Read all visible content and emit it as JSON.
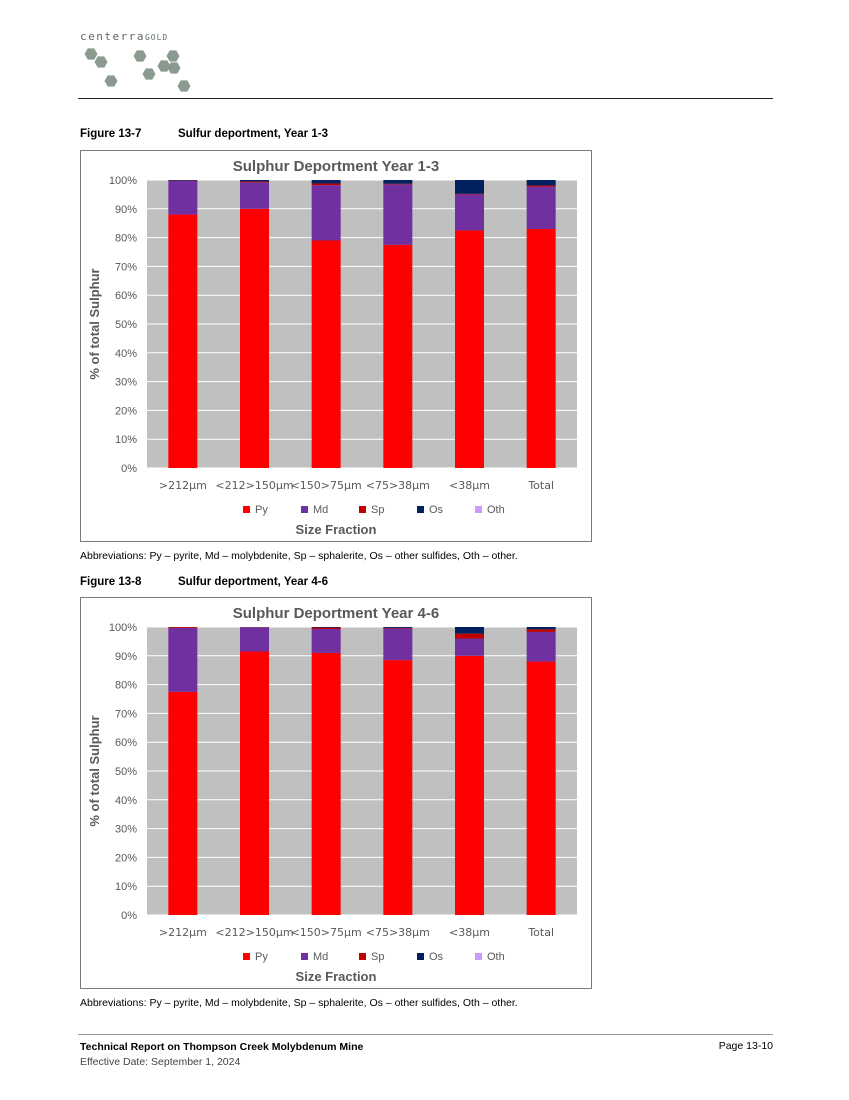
{
  "header": {
    "logo_text_main": "centerra",
    "logo_text_sub": "GOLD",
    "logo_color": "#8a9a8e"
  },
  "figures": [
    {
      "number": "Figure 13-7",
      "caption": "Sulfur deportment, Year 1-3",
      "abbreviations": "Abbreviations: Py – pyrite, Md – molybdenite, Sp – sphalerite, Os – other sulfides, Oth – other."
    },
    {
      "number": "Figure 13-8",
      "caption": "Sulfur deportment, Year 4-6",
      "abbreviations": "Abbreviations: Py – pyrite, Md – molybdenite, Sp – sphalerite, Os – other sulfides, Oth – other."
    }
  ],
  "chart_data": [
    {
      "type": "bar",
      "stacked": true,
      "title": "Sulphur Deportment Year 1-3",
      "xlabel": "Size Fraction",
      "ylabel": "% of total Sulphur",
      "ylim": [
        0,
        100
      ],
      "yticks": [
        "0%",
        "10%",
        "20%",
        "30%",
        "40%",
        "50%",
        "60%",
        "70%",
        "80%",
        "90%",
        "100%"
      ],
      "grid": true,
      "legend_position": "bottom",
      "plot_background": "#c0c0c0",
      "categories": [
        ">212µm",
        "<212>150µm",
        "<150>75µm",
        "<75>38µm",
        "<38µm",
        "Total"
      ],
      "series": [
        {
          "name": "Py",
          "color": "#ff0000",
          "values": [
            88,
            90,
            79,
            77.5,
            82.5,
            83
          ]
        },
        {
          "name": "Md",
          "color": "#7030a0",
          "values": [
            11.7,
            9.2,
            19.2,
            21,
            12.5,
            14.7
          ]
        },
        {
          "name": "Sp",
          "color": "#c00000",
          "values": [
            0.1,
            0.3,
            0.6,
            0.2,
            0.2,
            0.4
          ]
        },
        {
          "name": "Os",
          "color": "#002060",
          "values": [
            0.2,
            0.5,
            1.2,
            1.3,
            4.8,
            1.9
          ]
        },
        {
          "name": "Oth",
          "color": "#cc99ff",
          "values": [
            0,
            0,
            0,
            0,
            0,
            0
          ]
        }
      ]
    },
    {
      "type": "bar",
      "stacked": true,
      "title": "Sulphur Deportment Year 4-6",
      "xlabel": "Size Fraction",
      "ylabel": "% of total Sulphur",
      "ylim": [
        0,
        100
      ],
      "yticks": [
        "0%",
        "10%",
        "20%",
        "30%",
        "40%",
        "50%",
        "60%",
        "70%",
        "80%",
        "90%",
        "100%"
      ],
      "grid": true,
      "legend_position": "bottom",
      "plot_background": "#c0c0c0",
      "categories": [
        ">212µm",
        "<212>150µm",
        "<150>75µm",
        "<75>38µm",
        "<38µm",
        "Total"
      ],
      "series": [
        {
          "name": "Py",
          "color": "#ff0000",
          "values": [
            77.5,
            91.5,
            91,
            88.5,
            90,
            88
          ]
        },
        {
          "name": "Md",
          "color": "#7030a0",
          "values": [
            22.2,
            8.3,
            8.3,
            11,
            6,
            10.3
          ]
        },
        {
          "name": "Sp",
          "color": "#c00000",
          "values": [
            0.3,
            0.1,
            0.5,
            0.2,
            1.7,
            0.9
          ]
        },
        {
          "name": "Os",
          "color": "#002060",
          "values": [
            0,
            0.1,
            0.2,
            0.3,
            2.3,
            0.8
          ]
        },
        {
          "name": "Oth",
          "color": "#cc99ff",
          "values": [
            0,
            0,
            0,
            0,
            0,
            0
          ]
        }
      ]
    }
  ],
  "footer": {
    "title": "Technical Report on Thompson Creek Molybdenum Mine",
    "date": "Effective Date: September 1, 2024",
    "page": "Page 13-10"
  }
}
